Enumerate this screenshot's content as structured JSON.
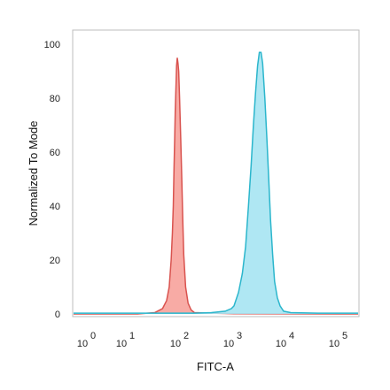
{
  "chart_data": {
    "type": "area",
    "xlabel": "FITC-A",
    "ylabel": "Normalized To Mode",
    "x_scale": "log",
    "xlim": [
      1,
      200000
    ],
    "ylim": [
      0,
      105
    ],
    "y_ticks": [
      "0",
      "20",
      "40",
      "60",
      "80",
      "100"
    ],
    "y_tick_values": [
      0,
      20,
      40,
      60,
      80,
      100
    ],
    "x_ticks": [
      {
        "base": "10",
        "exp": "0",
        "value": 1
      },
      {
        "base": "10",
        "exp": "1",
        "value": 10
      },
      {
        "base": "10",
        "exp": "2",
        "value": 100
      },
      {
        "base": "10",
        "exp": "3",
        "value": 1000
      },
      {
        "base": "10",
        "exp": "4",
        "value": 10000
      },
      {
        "base": "10",
        "exp": "5",
        "value": 100000
      }
    ],
    "grid": false,
    "legend": "none",
    "series": [
      {
        "color": "#d9534f",
        "fill": "#f7a29b",
        "points": [
          [
            1,
            0
          ],
          [
            20,
            0
          ],
          [
            40,
            0.5
          ],
          [
            55,
            2
          ],
          [
            65,
            5
          ],
          [
            72,
            10
          ],
          [
            78,
            20
          ],
          [
            82,
            30
          ],
          [
            85,
            40
          ],
          [
            88,
            55
          ],
          [
            90,
            65
          ],
          [
            92,
            75
          ],
          [
            95,
            85
          ],
          [
            97,
            92
          ],
          [
            100,
            95
          ],
          [
            103,
            93
          ],
          [
            106,
            90
          ],
          [
            110,
            80
          ],
          [
            115,
            65
          ],
          [
            120,
            50
          ],
          [
            125,
            35
          ],
          [
            130,
            22
          ],
          [
            140,
            10
          ],
          [
            155,
            4
          ],
          [
            175,
            1.5
          ],
          [
            200,
            0.5
          ],
          [
            400,
            0.3
          ],
          [
            1000,
            0.1
          ],
          [
            200000,
            0
          ]
        ]
      },
      {
        "color": "#2bb6cc",
        "fill": "#a6e4f2",
        "points": [
          [
            1,
            0.3
          ],
          [
            200,
            0.3
          ],
          [
            400,
            0.5
          ],
          [
            700,
            1
          ],
          [
            900,
            2
          ],
          [
            1000,
            3
          ],
          [
            1200,
            8
          ],
          [
            1400,
            15
          ],
          [
            1600,
            25
          ],
          [
            1800,
            40
          ],
          [
            2000,
            55
          ],
          [
            2200,
            70
          ],
          [
            2400,
            82
          ],
          [
            2600,
            92
          ],
          [
            2800,
            97
          ],
          [
            3000,
            97
          ],
          [
            3200,
            93
          ],
          [
            3500,
            80
          ],
          [
            3800,
            65
          ],
          [
            4100,
            50
          ],
          [
            4400,
            35
          ],
          [
            4800,
            22
          ],
          [
            5200,
            12
          ],
          [
            5800,
            6
          ],
          [
            6500,
            3
          ],
          [
            7500,
            1
          ],
          [
            10000,
            0.5
          ],
          [
            30000,
            0.3
          ],
          [
            200000,
            0.3
          ]
        ]
      }
    ]
  }
}
